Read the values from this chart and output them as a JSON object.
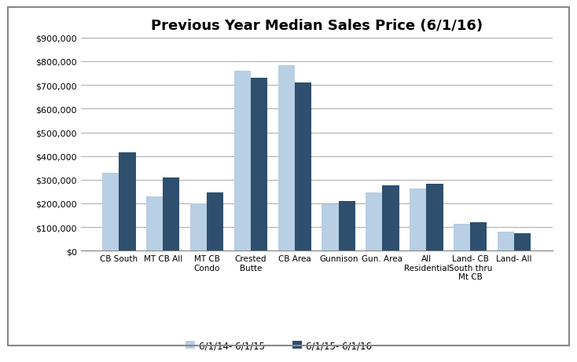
{
  "title": "Previous Year Median Sales Price (6/1/16)",
  "categories": [
    "CB South",
    "MT CB All",
    "MT CB\nCondo",
    "Crested\nButte",
    "CB Area",
    "Gunnison",
    "Gun. Area",
    "All\nResidential",
    "Land- CB\nSouth thru\nMt CB",
    "Land- All"
  ],
  "series1_label": "6/1/14- 6/1/15",
  "series2_label": "6/1/15- 6/1/16",
  "series1_values": [
    330000,
    230000,
    200000,
    760000,
    785000,
    197000,
    247000,
    265000,
    115000,
    80000
  ],
  "series2_values": [
    415000,
    310000,
    247000,
    730000,
    712000,
    212000,
    278000,
    282000,
    122000,
    75000
  ],
  "color1": "#b8cfe4",
  "color2": "#2e4f6e",
  "ylim": [
    0,
    900000
  ],
  "yticks": [
    0,
    100000,
    200000,
    300000,
    400000,
    500000,
    600000,
    700000,
    800000,
    900000
  ],
  "background_color": "#ffffff",
  "grid_color": "#aaaaaa",
  "border_color": "#808080"
}
